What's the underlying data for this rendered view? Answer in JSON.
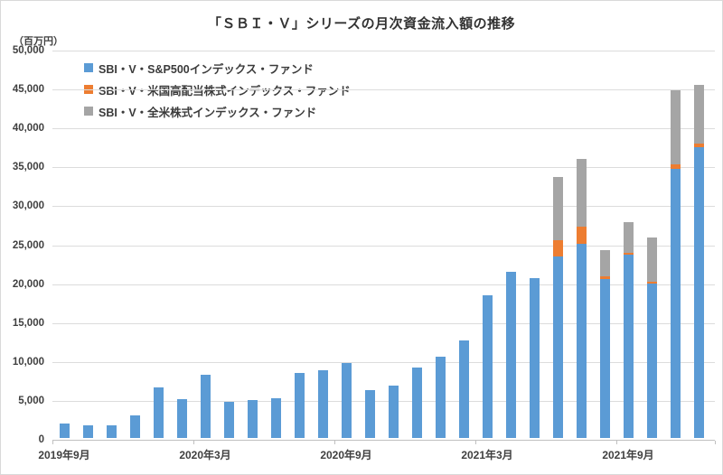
{
  "title": "「ＳＢＩ・Ｖ」シリーズの月次資金流入額の推移",
  "y_axis_unit": "（百万円）",
  "legend": {
    "items": [
      {
        "label": "SBI・V・S&P500インデックス・ファンド",
        "color": "#5b9bd5"
      },
      {
        "label": "SBI・V・米国高配当株式インデックス・ファンド",
        "color": "#ed7d31"
      },
      {
        "label": "SBI・V・全米株式インデックス・ファンド",
        "color": "#a5a5a5"
      }
    ]
  },
  "chart_data": {
    "type": "bar",
    "stacked": true,
    "title": "「ＳＢＩ・Ｖ」シリーズの月次資金流入額の推移",
    "ylabel": "（百万円）",
    "ylim": [
      0,
      50000
    ],
    "y_tick_step": 5000,
    "grid": true,
    "legend_position": "top-left-inside",
    "categories": [
      "2019年9月",
      "2019年10月",
      "2019年11月",
      "2019年12月",
      "2020年1月",
      "2020年2月",
      "2020年3月",
      "2020年4月",
      "2020年5月",
      "2020年6月",
      "2020年7月",
      "2020年8月",
      "2020年9月",
      "2020年10月",
      "2020年11月",
      "2020年12月",
      "2021年1月",
      "2021年2月",
      "2021年3月",
      "2021年4月",
      "2021年5月",
      "2021年6月",
      "2021年7月",
      "2021年8月",
      "2021年9月",
      "2021年10月",
      "2021年11月",
      "2021年12月"
    ],
    "x_tick_labels": [
      {
        "label": "2019年9月",
        "index": 0
      },
      {
        "label": "2020年3月",
        "index": 6
      },
      {
        "label": "2020年9月",
        "index": 12
      },
      {
        "label": "2021年3月",
        "index": 18
      },
      {
        "label": "2021年9月",
        "index": 24
      }
    ],
    "series": [
      {
        "name": "SBI・V・S&P500インデックス・ファンド",
        "color": "#5b9bd5",
        "values": [
          1800,
          1600,
          1600,
          2900,
          6500,
          5000,
          8100,
          4600,
          4900,
          5100,
          8400,
          8700,
          9600,
          6100,
          6700,
          9100,
          10400,
          12500,
          18300,
          21400,
          20500,
          23300,
          24900,
          20400,
          23500,
          19800,
          34600,
          37300
        ]
      },
      {
        "name": "SBI・V・米国高配当株式インデックス・ファンド",
        "color": "#ed7d31",
        "values": [
          0,
          0,
          0,
          0,
          0,
          0,
          0,
          0,
          0,
          0,
          0,
          0,
          0,
          0,
          0,
          0,
          0,
          0,
          0,
          0,
          0,
          2100,
          2200,
          400,
          300,
          300,
          600,
          500
        ]
      },
      {
        "name": "SBI・V・全米株式インデックス・ファンド",
        "color": "#a5a5a5",
        "values": [
          0,
          0,
          0,
          0,
          0,
          0,
          0,
          0,
          0,
          0,
          0,
          0,
          0,
          0,
          0,
          0,
          0,
          0,
          0,
          0,
          0,
          8100,
          8700,
          3300,
          3900,
          5700,
          9500,
          7600
        ]
      }
    ]
  }
}
